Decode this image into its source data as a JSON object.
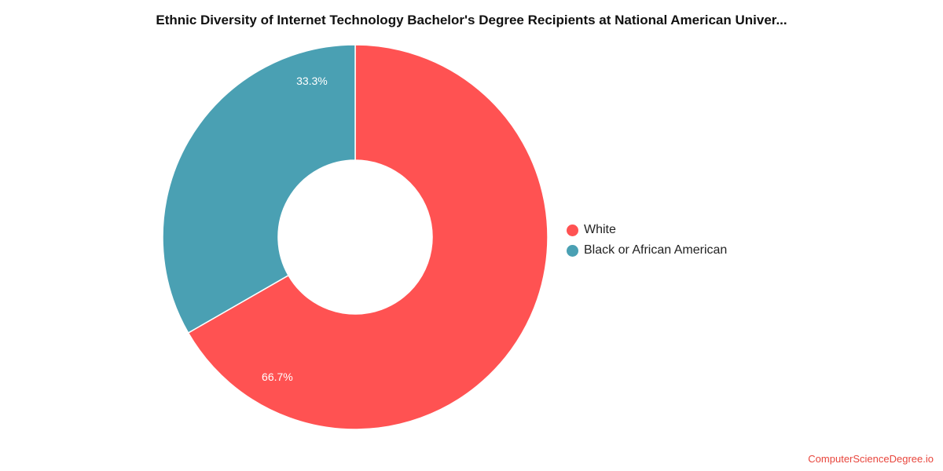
{
  "chart_data": {
    "type": "pie",
    "variant": "donut",
    "title": "Ethnic Diversity of Internet Technology Bachelor's Degree Recipients at National American Univer...",
    "slices": [
      {
        "label": "White",
        "value": 66.7,
        "display": "66.7%",
        "color": "#ff5252"
      },
      {
        "label": "Black or African American",
        "value": 33.3,
        "display": "33.3%",
        "color": "#4aa0b3"
      }
    ],
    "legend_position": "right"
  },
  "credit": {
    "text": "ComputerScienceDegree.io",
    "color": "#e8453c"
  }
}
